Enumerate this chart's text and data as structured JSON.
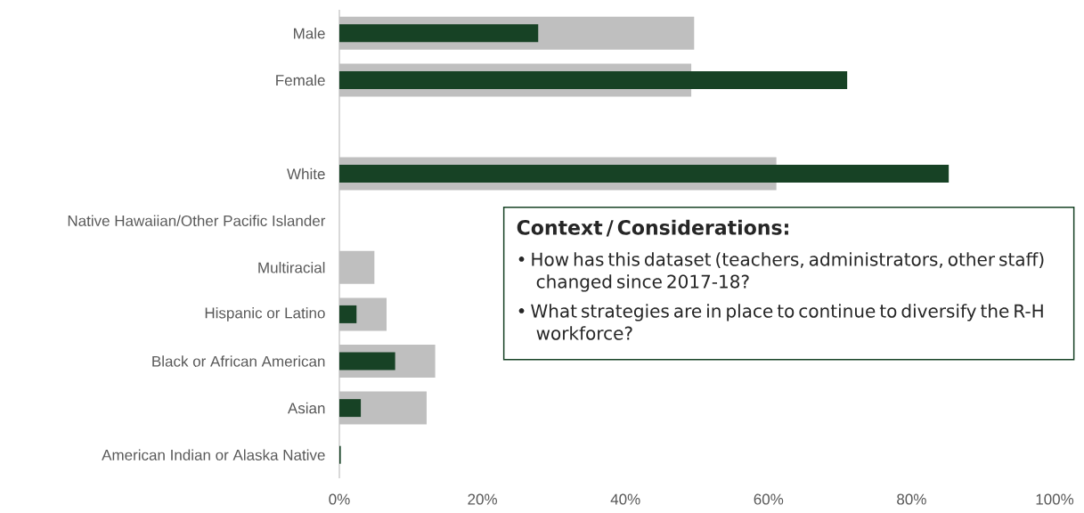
{
  "chart_data": {
    "type": "bar",
    "orientation": "horizontal",
    "categories": [
      "Male",
      "Female",
      null,
      "White",
      "Native Hawaiian/Other Pacific Islander",
      "Multiracial",
      "Hispanic or Latino",
      "Black or African American",
      "Asian",
      "American Indian or Alaska Native"
    ],
    "series": [
      {
        "color": "#bfbfbf",
        "values": [
          49.6,
          49.2,
          null,
          61.1,
          0,
          4.9,
          6.6,
          13.4,
          12.2,
          0
        ]
      },
      {
        "color": "#174225",
        "values": [
          27.8,
          71.0,
          null,
          85.2,
          0,
          0,
          2.4,
          7.8,
          3.0,
          0.2
        ]
      }
    ],
    "xlim": [
      0,
      100
    ],
    "xticks": [
      {
        "value": 0,
        "label": "0%"
      },
      {
        "value": 20,
        "label": "20%"
      },
      {
        "value": 40,
        "label": "40%"
      },
      {
        "value": 60,
        "label": "60%"
      },
      {
        "value": 80,
        "label": "80%"
      },
      {
        "value": 100,
        "label": "100%"
      }
    ],
    "annotations": [
      "Context / Considerations:",
      "• How has this dataset (teachers, administrators, other staff) changed since 2017-18?",
      "• What strategies are in place to continue to diversify the R-H workforce?"
    ]
  }
}
